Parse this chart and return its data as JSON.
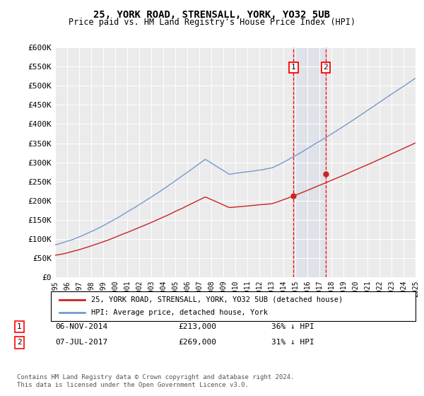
{
  "title": "25, YORK ROAD, STRENSALL, YORK, YO32 5UB",
  "subtitle": "Price paid vs. HM Land Registry's House Price Index (HPI)",
  "ylabel_ticks": [
    "£0",
    "£50K",
    "£100K",
    "£150K",
    "£200K",
    "£250K",
    "£300K",
    "£350K",
    "£400K",
    "£450K",
    "£500K",
    "£550K",
    "£600K"
  ],
  "ytick_values": [
    0,
    50000,
    100000,
    150000,
    200000,
    250000,
    300000,
    350000,
    400000,
    450000,
    500000,
    550000,
    600000
  ],
  "xmin": 1995,
  "xmax": 2025,
  "ymin": 0,
  "ymax": 600000,
  "hpi_color": "#7799cc",
  "price_color": "#cc2222",
  "sale1_date": 2014.85,
  "sale2_date": 2017.52,
  "sale1_price": 213000,
  "sale2_price": 269000,
  "legend_label1": "25, YORK ROAD, STRENSALL, YORK, YO32 5UB (detached house)",
  "legend_label2": "HPI: Average price, detached house, York",
  "footer": "Contains HM Land Registry data © Crown copyright and database right 2024.\nThis data is licensed under the Open Government Licence v3.0.",
  "background_color": "#ffffff",
  "plot_bg_color": "#ebebeb"
}
